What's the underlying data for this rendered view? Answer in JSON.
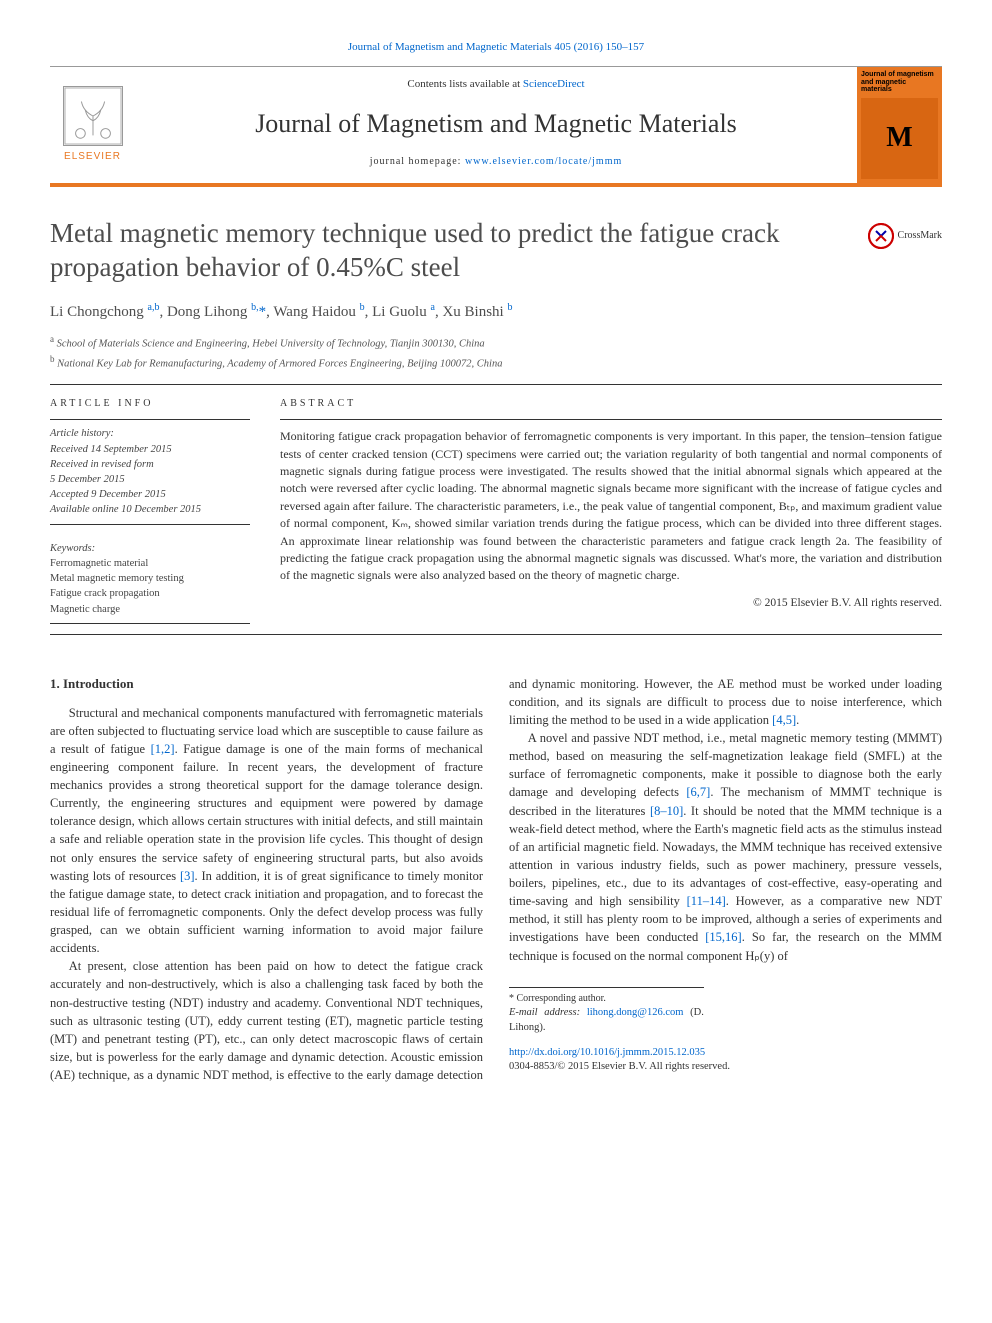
{
  "citation_line": "Journal of Magnetism and Magnetic Materials 405 (2016) 150–157",
  "masthead": {
    "contents_prefix": "Contents lists available at ",
    "contents_link": "ScienceDirect",
    "journal_name": "Journal of Magnetism and Magnetic Materials",
    "homepage_prefix": "journal homepage: ",
    "homepage_url": "www.elsevier.com/locate/jmmm",
    "publisher_brand": "ELSEVIER",
    "cover_title": "Journal of magnetism and magnetic materials",
    "cover_mark": "M",
    "accent_color": "#e87722"
  },
  "crossmark_label": "CrossMark",
  "title": "Metal magnetic memory technique used to predict the fatigue crack propagation behavior of 0.45%C steel",
  "authors_html": "Li Chongchong <sup>a,b</sup>, Dong Lihong <sup>b,</sup><span class='asterisk'>*</span>, Wang Haidou <sup>b</sup>, Li Guolu <sup>a</sup>, Xu Binshi <sup>b</sup>",
  "affiliations": [
    {
      "marker": "a",
      "text": "School of Materials Science and Engineering, Hebei University of Technology, Tianjin 300130, China"
    },
    {
      "marker": "b",
      "text": "National Key Lab for Remanufacturing, Academy of Armored Forces Engineering, Beijing 100072, China"
    }
  ],
  "labels": {
    "article_info": "ARTICLE INFO",
    "abstract": "ABSTRACT",
    "history": "Article history:",
    "keywords": "Keywords:"
  },
  "history": {
    "received": "Received 14 September 2015",
    "revised": "Received in revised form\n5 December 2015",
    "accepted": "Accepted 9 December 2015",
    "online": "Available online 10 December 2015"
  },
  "keywords": [
    "Ferromagnetic material",
    "Metal magnetic memory testing",
    "Fatigue crack propagation",
    "Magnetic charge"
  ],
  "abstract": "Monitoring fatigue crack propagation behavior of ferromagnetic components is very important. In this paper, the tension–tension fatigue tests of center cracked tension (CCT) specimens were carried out; the variation regularity of both tangential and normal components of magnetic signals during fatigue process were investigated. The results showed that the initial abnormal signals which appeared at the notch were reversed after cyclic loading. The abnormal magnetic signals became more significant with the increase of fatigue cycles and reversed again after failure. The characteristic parameters, i.e., the peak value of tangential component, Bₜₚ, and maximum gradient value of normal component, Kₘ, showed similar variation trends during the fatigue process, which can be divided into three different stages. An approximate linear relationship was found between the characteristic parameters and fatigue crack length 2a. The feasibility of predicting the fatigue crack propagation using the abnormal magnetic signals was discussed. What's more, the variation and distribution of the magnetic signals were also analyzed based on the theory of magnetic charge.",
  "abstract_copyright": "© 2015 Elsevier B.V. All rights reserved.",
  "body": {
    "section_num": "1.",
    "section_title": "Introduction",
    "para1": "Structural and mechanical components manufactured with ferromagnetic materials are often subjected to fluctuating service load which are susceptible to cause failure as a result of fatigue [1,2]. Fatigue damage is one of the main forms of mechanical engineering component failure. In recent years, the development of fracture mechanics provides a strong theoretical support for the damage tolerance design. Currently, the engineering structures and equipment were powered by damage tolerance design, which allows certain structures with initial defects, and still maintain a safe and reliable operation state in the provision life cycles. This thought of design not only ensures the service safety of engineering structural parts, but also avoids wasting lots of resources [3]. In addition, it is of great significance to timely monitor the fatigue damage state, to detect crack initiation and propagation, and to forecast the residual life of ferromagnetic components. Only the defect develop process was fully grasped, can we obtain sufficient warning information to avoid major failure accidents.",
    "para2": "At present, close attention has been paid on how to detect the fatigue crack accurately and non-destructively, which is also a challenging task faced by both the non-destructive testing (NDT) industry and academy. Conventional NDT techniques, such as ultrasonic testing (UT), eddy current testing (ET), magnetic particle testing (MT) and penetrant testing (PT), etc., can only detect macroscopic flaws of certain size, but is powerless for the early damage and dynamic detection. Acoustic emission (AE) technique, as a dynamic NDT method, is effective to the early damage detection and dynamic monitoring. However, the AE method must be worked under loading condition, and its signals are difficult to process due to noise interference, which limiting the method to be used in a wide application [4,5].",
    "para3": "A novel and passive NDT method, i.e., metal magnetic memory testing (MMMT) method, based on measuring the self-magnetization leakage field (SMFL) at the surface of ferromagnetic components, make it possible to diagnose both the early damage and developing defects [6,7]. The mechanism of MMMT technique is described in the literatures [8–10]. It should be noted that the MMM technique is a weak-field detect method, where the Earth's magnetic field acts as the stimulus instead of an artificial magnetic field. Nowadays, the MMM technique has received extensive attention in various industry fields, such as power machinery, pressure vessels, boilers, pipelines, etc., due to its advantages of cost-effective, easy-operating and time-saving and high sensibility [11–14]. However, as a comparative new NDT method, it still has plenty room to be improved, although a series of experiments and investigations have been conducted [15,16]. So far, the research on the MMM technique is focused on the normal component Hₚ(y) of"
  },
  "footnotes": {
    "corr_label": "* Corresponding author.",
    "email_label": "E-mail address:",
    "email": "lihong.dong@126.com",
    "email_author": "(D. Lihong)."
  },
  "doi": "http://dx.doi.org/10.1016/j.jmmm.2015.12.035",
  "issn_line": "0304-8853/© 2015 Elsevier B.V. All rights reserved."
}
